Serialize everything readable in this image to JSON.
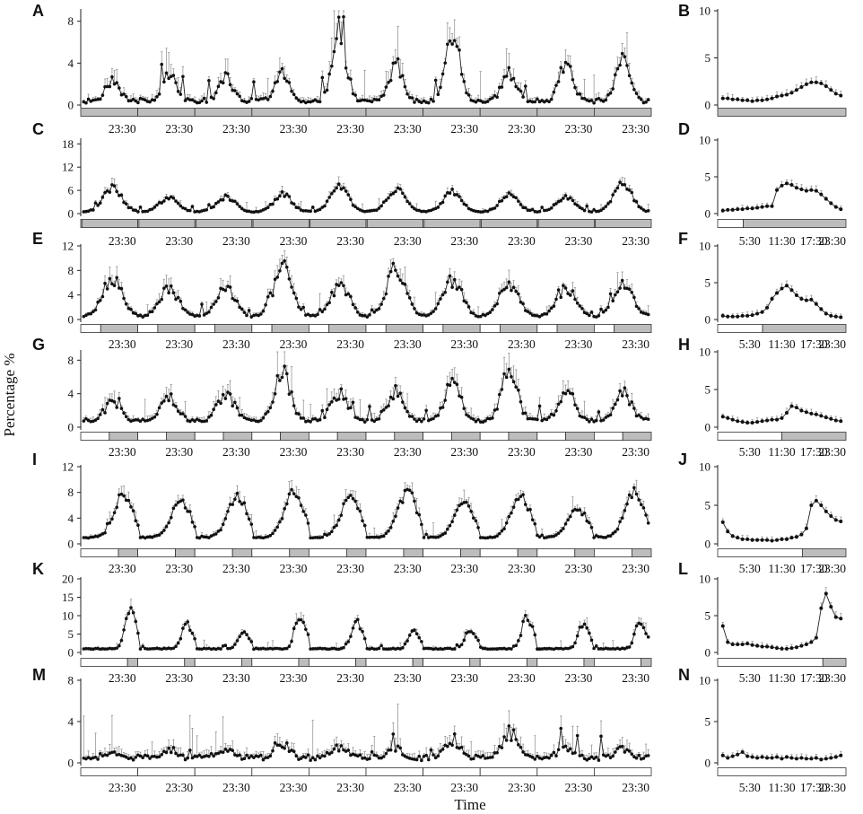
{
  "figure": {
    "ylabel": "Percentage %",
    "xlabel": "Time"
  },
  "chart_data": [
    {
      "panel": "A",
      "type": "line",
      "ylim": [
        0,
        9
      ],
      "yticks": [
        0,
        4,
        8
      ],
      "x_tick_labels": [
        "23:30",
        "23:30",
        "23:30",
        "23:30",
        "23:30",
        "23:30",
        "23:30",
        "23:30",
        "23:30",
        "23:30"
      ],
      "peaks_day_fraction": [
        0.5,
        0.5,
        0.5,
        0.5,
        0.5,
        0.5,
        0.5,
        0.5,
        0.5,
        0.5
      ],
      "peaks_value": [
        2.0,
        2.5,
        2.2,
        2.6,
        5.8,
        3.2,
        5.8,
        2.7,
        3.2,
        3.6
      ],
      "baseline": 0.4,
      "error_scale": 0.7,
      "peak_width": 0.11,
      "noise": 0.9,
      "light_dark_bar": [
        {
          "start": 0.0,
          "end": 1.0,
          "dark": true
        }
      ]
    },
    {
      "panel": "B",
      "type": "line",
      "ylim": [
        0,
        10
      ],
      "yticks": [
        0,
        5,
        10
      ],
      "x_tick_labels": [],
      "x_day_fraction": [
        0.02,
        0.06,
        0.1,
        0.14,
        0.18,
        0.22,
        0.26,
        0.3,
        0.34,
        0.38,
        0.42,
        0.46,
        0.5,
        0.54,
        0.58,
        0.62,
        0.66,
        0.7,
        0.74,
        0.78,
        0.82,
        0.86,
        0.9,
        0.94,
        0.98
      ],
      "values": [
        0.7,
        0.7,
        0.6,
        0.6,
        0.5,
        0.5,
        0.4,
        0.5,
        0.5,
        0.6,
        0.7,
        0.9,
        1.0,
        1.1,
        1.3,
        1.6,
        1.9,
        2.2,
        2.4,
        2.4,
        2.3,
        2.0,
        1.6,
        1.2,
        1.0
      ],
      "light_dark_bar": [
        {
          "start": 0.0,
          "end": 1.0,
          "dark": true
        }
      ]
    },
    {
      "panel": "C",
      "type": "line",
      "ylim": [
        0,
        19
      ],
      "yticks": [
        0,
        6,
        12,
        18
      ],
      "x_tick_labels": [
        "23:30",
        "23:30",
        "23:30",
        "23:30",
        "23:30",
        "23:30",
        "23:30",
        "23:30",
        "23:30",
        "23:30"
      ],
      "peaks_day_fraction": [
        0.5,
        0.5,
        0.5,
        0.5,
        0.5,
        0.5,
        0.5,
        0.5,
        0.5,
        0.5
      ],
      "peaks_value": [
        5.5,
        3.5,
        3.5,
        4.0,
        5.5,
        5.0,
        4.5,
        4.0,
        3.5,
        6.5
      ],
      "baseline": 0.5,
      "error_scale": 0.5,
      "peak_width": 0.15,
      "noise": 0.6,
      "light_dark_bar": [
        {
          "start": 0.0,
          "end": 0.02,
          "dark": false
        },
        {
          "start": 0.02,
          "end": 1.0,
          "dark": true
        }
      ]
    },
    {
      "panel": "D",
      "type": "line",
      "ylim": [
        0,
        10
      ],
      "yticks": [
        0,
        5,
        10
      ],
      "x_tick_labels": [
        "5:30",
        "11:30",
        "17:30",
        "23:30"
      ],
      "x_day_fraction": [
        0.02,
        0.06,
        0.1,
        0.14,
        0.18,
        0.22,
        0.26,
        0.3,
        0.34,
        0.38,
        0.42,
        0.46,
        0.5,
        0.54,
        0.58,
        0.62,
        0.66,
        0.7,
        0.74,
        0.78,
        0.82,
        0.86,
        0.9,
        0.94,
        0.98
      ],
      "values": [
        0.4,
        0.5,
        0.5,
        0.6,
        0.6,
        0.7,
        0.7,
        0.8,
        0.9,
        1.0,
        1.0,
        3.2,
        3.8,
        4.1,
        3.9,
        3.5,
        3.3,
        3.1,
        3.2,
        3.1,
        2.6,
        2.0,
        1.4,
        0.9,
        0.6
      ],
      "light_dark_bar": [
        {
          "start": 0.0,
          "end": 0.2,
          "dark": false
        },
        {
          "start": 0.2,
          "end": 1.0,
          "dark": true
        }
      ]
    },
    {
      "panel": "E",
      "type": "line",
      "ylim": [
        0,
        12
      ],
      "yticks": [
        0,
        4,
        8,
        12
      ],
      "x_tick_labels": [
        "23:30",
        "23:30",
        "23:30",
        "23:30",
        "23:30",
        "23:30",
        "23:30",
        "23:30",
        "23:30",
        "23:30"
      ],
      "peaks_day_fraction": [
        0.5,
        0.5,
        0.5,
        0.5,
        0.5,
        0.5,
        0.5,
        0.5,
        0.5,
        0.5
      ],
      "peaks_value": [
        5.5,
        4.0,
        4.0,
        6.5,
        4.5,
        6.5,
        5.0,
        4.5,
        4.0,
        5.0
      ],
      "baseline": 0.5,
      "error_scale": 0.6,
      "peak_width": 0.16,
      "noise": 0.8,
      "light_dark_bar": [
        {
          "start": 0.0,
          "end": 0.35,
          "dark": false
        },
        {
          "start": 0.35,
          "end": 1.0,
          "dark": true
        }
      ]
    },
    {
      "panel": "F",
      "type": "line",
      "ylim": [
        0,
        10
      ],
      "yticks": [
        0,
        5,
        10
      ],
      "x_tick_labels": [
        "5:30",
        "11:30",
        "17:30",
        "23:30"
      ],
      "x_day_fraction": [
        0.02,
        0.06,
        0.1,
        0.14,
        0.18,
        0.22,
        0.26,
        0.3,
        0.34,
        0.38,
        0.42,
        0.46,
        0.5,
        0.54,
        0.58,
        0.62,
        0.66,
        0.7,
        0.74,
        0.78,
        0.82,
        0.86,
        0.9,
        0.94,
        0.98
      ],
      "values": [
        0.5,
        0.4,
        0.4,
        0.4,
        0.5,
        0.5,
        0.6,
        0.8,
        1.0,
        1.6,
        2.8,
        3.6,
        4.2,
        4.6,
        4.0,
        3.3,
        2.8,
        2.6,
        2.7,
        2.1,
        1.4,
        0.8,
        0.5,
        0.4,
        0.3
      ],
      "light_dark_bar": [
        {
          "start": 0.0,
          "end": 0.35,
          "dark": false
        },
        {
          "start": 0.35,
          "end": 1.0,
          "dark": true
        }
      ]
    },
    {
      "panel": "G",
      "type": "line",
      "ylim": [
        0,
        9
      ],
      "yticks": [
        0,
        4,
        8
      ],
      "x_tick_labels": [
        "23:30",
        "23:30",
        "23:30",
        "23:30",
        "23:30",
        "23:30",
        "23:30",
        "23:30",
        "23:30",
        "23:30"
      ],
      "peaks_day_fraction": [
        0.5,
        0.5,
        0.5,
        0.5,
        0.5,
        0.5,
        0.5,
        0.5,
        0.5,
        0.5
      ],
      "peaks_value": [
        2.5,
        3.0,
        3.5,
        5.5,
        3.5,
        3.5,
        4.5,
        5.5,
        3.5,
        3.5
      ],
      "baseline": 0.8,
      "error_scale": 0.7,
      "peak_width": 0.13,
      "noise": 0.8,
      "light_dark_bar": [
        {
          "start": 0.0,
          "end": 0.5,
          "dark": false
        },
        {
          "start": 0.5,
          "end": 1.0,
          "dark": true
        }
      ]
    },
    {
      "panel": "H",
      "type": "line",
      "ylim": [
        0,
        10
      ],
      "yticks": [
        0,
        5,
        10
      ],
      "x_tick_labels": [
        "5:30",
        "11:30",
        "17:30",
        "23:30"
      ],
      "x_day_fraction": [
        0.02,
        0.06,
        0.1,
        0.14,
        0.18,
        0.22,
        0.26,
        0.3,
        0.34,
        0.38,
        0.42,
        0.46,
        0.5,
        0.54,
        0.58,
        0.62,
        0.66,
        0.7,
        0.74,
        0.78,
        0.82,
        0.86,
        0.9,
        0.94,
        0.98
      ],
      "values": [
        1.4,
        1.2,
        1.0,
        0.8,
        0.7,
        0.6,
        0.6,
        0.7,
        0.8,
        0.9,
        1.0,
        1.0,
        1.2,
        1.9,
        2.8,
        2.6,
        2.2,
        2.0,
        1.8,
        1.7,
        1.5,
        1.3,
        1.1,
        0.9,
        0.8
      ],
      "light_dark_bar": [
        {
          "start": 0.0,
          "end": 0.5,
          "dark": false
        },
        {
          "start": 0.5,
          "end": 1.0,
          "dark": true
        }
      ]
    },
    {
      "panel": "I",
      "type": "line",
      "ylim": [
        0,
        12
      ],
      "yticks": [
        0,
        4,
        8,
        12
      ],
      "x_tick_labels": [
        "23:30",
        "23:30",
        "23:30",
        "23:30",
        "23:30",
        "23:30",
        "23:30",
        "23:30",
        "23:30",
        "23:30"
      ],
      "peaks_day_fraction": [
        0.7,
        0.7,
        0.7,
        0.7,
        0.7,
        0.7,
        0.7,
        0.7,
        0.7,
        0.7
      ],
      "peaks_value": [
        6.0,
        5.5,
        6.0,
        6.5,
        6.0,
        6.5,
        5.0,
        6.0,
        4.5,
        6.5
      ],
      "baseline": 1.0,
      "error_scale": 0.45,
      "peak_width": 0.16,
      "noise": 0.4,
      "light_dark_bar": [
        {
          "start": 0.0,
          "end": 0.66,
          "dark": false
        },
        {
          "start": 0.66,
          "end": 1.0,
          "dark": true
        }
      ]
    },
    {
      "panel": "J",
      "type": "line",
      "ylim": [
        0,
        10
      ],
      "yticks": [
        0,
        5,
        10
      ],
      "x_tick_labels": [
        "5:30",
        "11:30",
        "17:30",
        "23:30"
      ],
      "x_day_fraction": [
        0.02,
        0.06,
        0.1,
        0.14,
        0.18,
        0.22,
        0.26,
        0.3,
        0.34,
        0.38,
        0.42,
        0.46,
        0.5,
        0.54,
        0.58,
        0.62,
        0.66,
        0.7,
        0.74,
        0.78,
        0.82,
        0.86,
        0.9,
        0.94,
        0.98
      ],
      "values": [
        2.8,
        1.6,
        1.0,
        0.8,
        0.6,
        0.6,
        0.5,
        0.5,
        0.5,
        0.5,
        0.4,
        0.5,
        0.6,
        0.6,
        0.8,
        0.9,
        1.2,
        2.0,
        5.0,
        5.6,
        5.0,
        4.2,
        3.6,
        3.1,
        2.9
      ],
      "light_dark_bar": [
        {
          "start": 0.0,
          "end": 0.66,
          "dark": false
        },
        {
          "start": 0.66,
          "end": 1.0,
          "dark": true
        }
      ]
    },
    {
      "panel": "K",
      "type": "line",
      "ylim": [
        0,
        20
      ],
      "yticks": [
        0,
        5,
        10,
        15,
        20
      ],
      "x_tick_labels": [
        "23:30",
        "23:30",
        "23:30",
        "23:30",
        "23:30",
        "23:30",
        "23:30",
        "23:30",
        "23:30",
        "23:30"
      ],
      "peaks_day_fraction": [
        0.82,
        0.82,
        0.82,
        0.82,
        0.82,
        0.82,
        0.82,
        0.82,
        0.82,
        0.82
      ],
      "peaks_value": [
        11.0,
        7.0,
        5.5,
        9.0,
        7.5,
        5.5,
        6.0,
        9.0,
        7.0,
        7.5
      ],
      "baseline": 1.0,
      "error_scale": 0.5,
      "peak_width": 0.08,
      "noise": 0.5,
      "light_dark_bar": [
        {
          "start": 0.0,
          "end": 0.82,
          "dark": false
        },
        {
          "start": 0.82,
          "end": 1.0,
          "dark": true
        }
      ]
    },
    {
      "panel": "L",
      "type": "line",
      "ylim": [
        0,
        10
      ],
      "yticks": [
        0,
        5,
        10
      ],
      "x_tick_labels": [
        "5:30",
        "11:30",
        "17:30",
        "23:30"
      ],
      "x_day_fraction": [
        0.02,
        0.06,
        0.1,
        0.14,
        0.18,
        0.22,
        0.26,
        0.3,
        0.34,
        0.38,
        0.42,
        0.46,
        0.5,
        0.54,
        0.58,
        0.62,
        0.66,
        0.7,
        0.74,
        0.78,
        0.82,
        0.86,
        0.9,
        0.94,
        0.98
      ],
      "values": [
        3.6,
        1.4,
        1.1,
        1.1,
        1.1,
        1.2,
        1.0,
        0.9,
        0.8,
        0.8,
        0.7,
        0.6,
        0.5,
        0.5,
        0.6,
        0.7,
        0.9,
        1.1,
        1.4,
        2.0,
        6.0,
        8.0,
        6.2,
        4.8,
        4.6
      ],
      "light_dark_bar": [
        {
          "start": 0.0,
          "end": 0.82,
          "dark": false
        },
        {
          "start": 0.82,
          "end": 1.0,
          "dark": true
        }
      ]
    },
    {
      "panel": "M",
      "type": "line",
      "ylim": [
        0,
        8
      ],
      "yticks": [
        0,
        4,
        8
      ],
      "x_tick_labels": [
        "23:30",
        "23:30",
        "23:30",
        "23:30",
        "23:30",
        "23:30",
        "23:30",
        "23:30",
        "23:30",
        "23:30"
      ],
      "peaks_day_fraction": [
        0.5,
        0.5,
        0.5,
        0.5,
        0.5,
        0.5,
        0.5,
        0.5,
        0.5,
        0.5
      ],
      "peaks_value": [
        1.0,
        1.2,
        1.2,
        1.5,
        1.3,
        1.2,
        2.0,
        2.5,
        1.4,
        1.2
      ],
      "baseline": 0.5,
      "error_scale": 0.9,
      "peak_width": 0.12,
      "noise": 1.1,
      "light_dark_bar": [
        {
          "start": 0.0,
          "end": 1.0,
          "dark": false
        }
      ]
    },
    {
      "panel": "N",
      "type": "line",
      "ylim": [
        0,
        10
      ],
      "yticks": [
        0,
        5,
        10
      ],
      "x_tick_labels": [
        "5:30",
        "11:30",
        "17:30",
        "23:30"
      ],
      "x_day_fraction": [
        0.02,
        0.06,
        0.1,
        0.14,
        0.18,
        0.22,
        0.26,
        0.3,
        0.34,
        0.38,
        0.42,
        0.46,
        0.5,
        0.54,
        0.58,
        0.62,
        0.66,
        0.7,
        0.74,
        0.78,
        0.82,
        0.86,
        0.9,
        0.94,
        0.98
      ],
      "values": [
        0.9,
        0.6,
        0.8,
        1.0,
        1.3,
        0.8,
        0.7,
        0.6,
        0.7,
        0.6,
        0.6,
        0.7,
        0.5,
        0.7,
        0.6,
        0.5,
        0.6,
        0.5,
        0.5,
        0.6,
        0.4,
        0.5,
        0.6,
        0.7,
        0.9
      ],
      "light_dark_bar": [
        {
          "start": 0.0,
          "end": 1.0,
          "dark": false
        }
      ]
    }
  ]
}
